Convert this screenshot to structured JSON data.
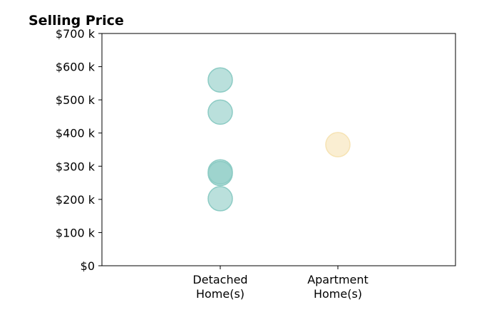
{
  "chart_data": {
    "type": "scatter",
    "title": "Selling Price",
    "xlabel": "",
    "ylabel": "",
    "categories": [
      [
        "Detached",
        "Home(s)"
      ],
      [
        "Apartment",
        "Home(s)"
      ]
    ],
    "ylim": [
      0,
      700000
    ],
    "yticks": [
      {
        "value": 0,
        "label": "$0"
      },
      {
        "value": 100000,
        "label": "$100 k"
      },
      {
        "value": 200000,
        "label": "$200 k"
      },
      {
        "value": 300000,
        "label": "$300 k"
      },
      {
        "value": 400000,
        "label": "$400 k"
      },
      {
        "value": 500000,
        "label": "$500 k"
      },
      {
        "value": 600000,
        "label": "$600 k"
      },
      {
        "value": 700000,
        "label": "$700 k"
      }
    ],
    "series": [
      {
        "category_index": 0,
        "color": "#8ccbc4",
        "values": [
          560000,
          463000,
          283000,
          278000,
          202000
        ]
      },
      {
        "category_index": 1,
        "color": "#f6e3b4",
        "values": [
          365000
        ]
      }
    ],
    "grid": false,
    "legend": "none"
  }
}
